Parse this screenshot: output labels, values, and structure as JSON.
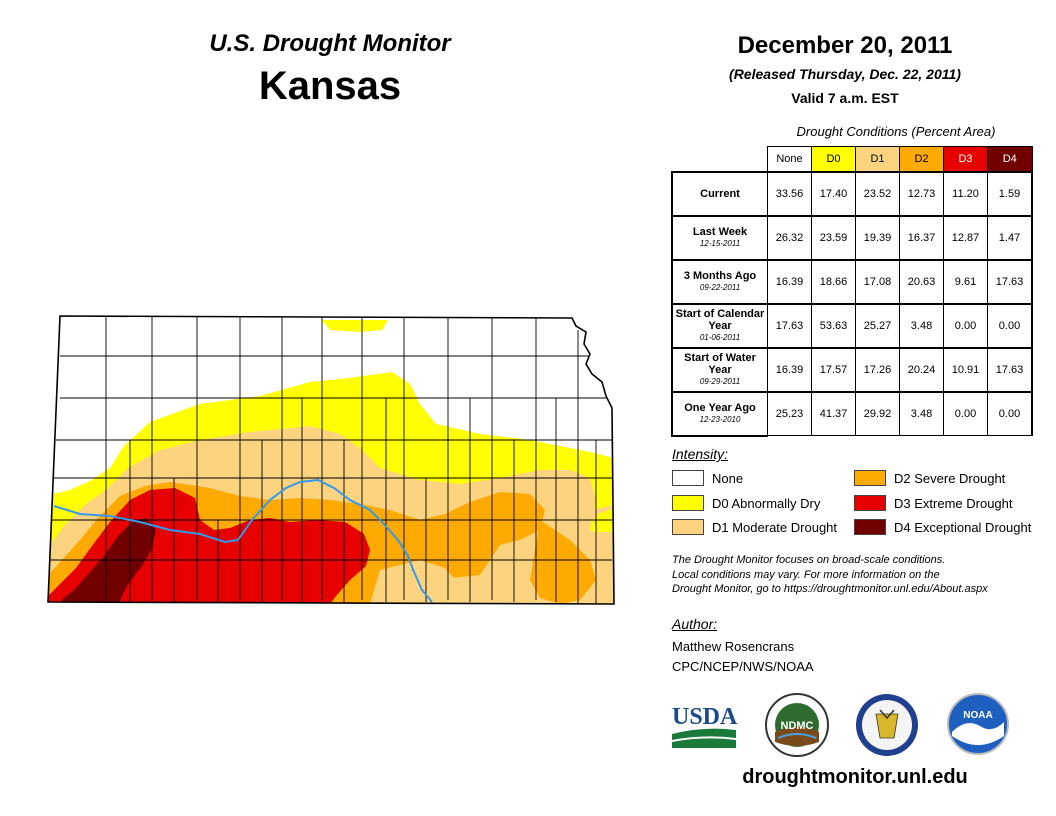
{
  "header": {
    "monitor_title": "U.S. Drought Monitor",
    "state": "Kansas",
    "date": "December 20, 2011",
    "released": "(Released Thursday, Dec. 22, 2011)",
    "valid": "Valid 7 a.m. EST"
  },
  "table": {
    "caption": "Drought Conditions (Percent Area)",
    "columns": [
      "None",
      "D0",
      "D1",
      "D2",
      "D3",
      "D4"
    ],
    "column_colors": [
      "#ffffff",
      "#ffff00",
      "#fcd37f",
      "#ffaa00",
      "#e60000",
      "#730000"
    ],
    "rows": [
      {
        "label": "Current",
        "sub": "",
        "values": [
          "33.56",
          "17.40",
          "23.52",
          "12.73",
          "11.20",
          "1.59"
        ]
      },
      {
        "label": "Last Week",
        "sub": "12-15-2011",
        "values": [
          "26.32",
          "23.59",
          "19.39",
          "16.37",
          "12.87",
          "1.47"
        ]
      },
      {
        "label": "3 Months Ago",
        "sub": "09-22-2011",
        "values": [
          "16.39",
          "18.66",
          "17.08",
          "20.63",
          "9.61",
          "17.63"
        ]
      },
      {
        "label": "Start of Calendar Year",
        "sub": "01-06-2011",
        "values": [
          "17.63",
          "53.63",
          "25.27",
          "3.48",
          "0.00",
          "0.00"
        ]
      },
      {
        "label": "Start of Water Year",
        "sub": "09-29-2011",
        "values": [
          "16.39",
          "17.57",
          "17.26",
          "20.24",
          "10.91",
          "17.63"
        ]
      },
      {
        "label": "One Year Ago",
        "sub": "12-23-2010",
        "values": [
          "25.23",
          "41.37",
          "29.92",
          "3.48",
          "0.00",
          "0.00"
        ]
      }
    ]
  },
  "legend": {
    "title": "Intensity:",
    "items": [
      {
        "label": "None",
        "color": "#ffffff"
      },
      {
        "label": "D0 Abnormally Dry",
        "color": "#ffff00"
      },
      {
        "label": "D1 Moderate Drought",
        "color": "#fcd37f"
      },
      {
        "label": "D2 Severe Drought",
        "color": "#ffaa00"
      },
      {
        "label": "D3 Extreme Drought",
        "color": "#e60000"
      },
      {
        "label": "D4 Exceptional Drought",
        "color": "#730000"
      }
    ]
  },
  "note": {
    "line1": "The Drought Monitor focuses on broad-scale conditions.",
    "line2": "Local conditions may vary. For more information on the",
    "line3": "Drought Monitor, go to https://droughtmonitor.unl.edu/About.aspx"
  },
  "author": {
    "heading": "Author:",
    "name": "Matthew Rosencrans",
    "org": "CPC/NCEP/NWS/NOAA"
  },
  "logos": {
    "usda": "USDA",
    "ndmc": "NDMC",
    "noaa": "NOAA"
  },
  "footer_url": "droughtmonitor.unl.edu"
}
